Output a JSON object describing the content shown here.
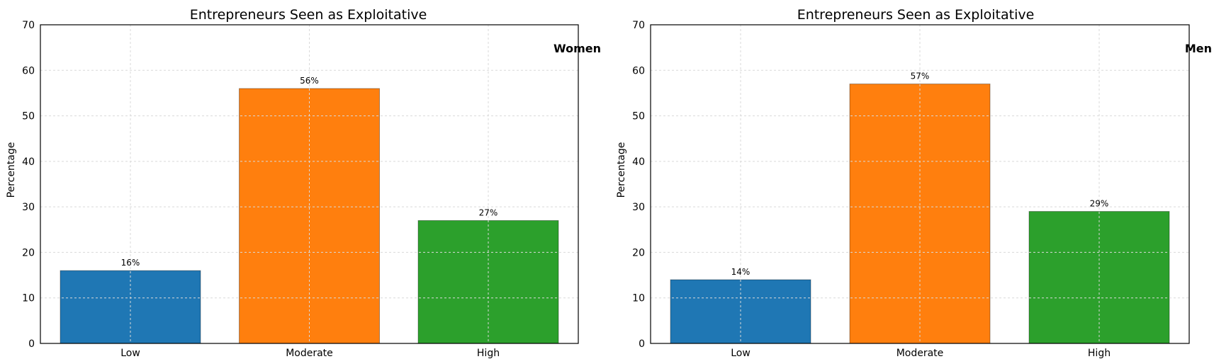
{
  "chart_data": [
    {
      "type": "bar",
      "title": "Entrepreneurs Seen as Exploitative",
      "annotation": "Women",
      "xlabel": "",
      "ylabel": "Percentage",
      "categories": [
        "Low",
        "Moderate",
        "High"
      ],
      "values": [
        16,
        56,
        27
      ],
      "data_labels": [
        "16%",
        "56%",
        "27%"
      ],
      "colors": [
        "#1f77b4",
        "#ff7f0e",
        "#2ca02c"
      ],
      "ylim": [
        0,
        70
      ],
      "yticks": [
        "0",
        "10",
        "20",
        "30",
        "40",
        "50",
        "60",
        "70"
      ],
      "grid": true
    },
    {
      "type": "bar",
      "title": "Entrepreneurs Seen as Exploitative",
      "annotation": "Men",
      "xlabel": "",
      "ylabel": "Percentage",
      "categories": [
        "Low",
        "Moderate",
        "High"
      ],
      "values": [
        14,
        57,
        29
      ],
      "data_labels": [
        "14%",
        "57%",
        "29%"
      ],
      "colors": [
        "#1f77b4",
        "#ff7f0e",
        "#2ca02c"
      ],
      "ylim": [
        0,
        70
      ],
      "yticks": [
        "0",
        "10",
        "20",
        "30",
        "40",
        "50",
        "60",
        "70"
      ],
      "grid": true
    }
  ]
}
